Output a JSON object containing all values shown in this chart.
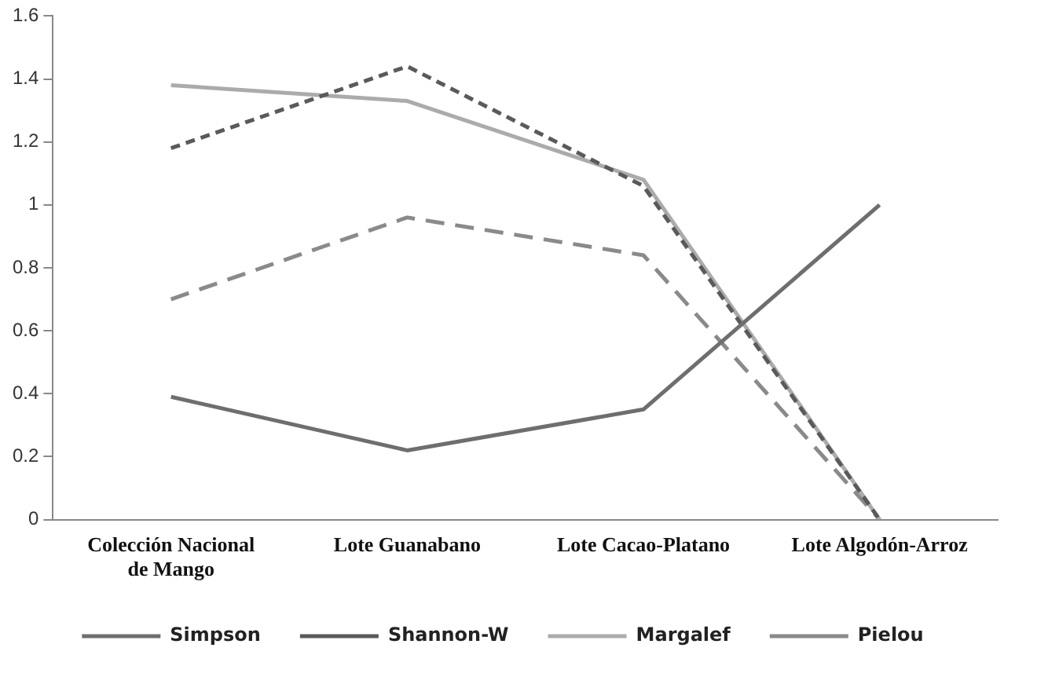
{
  "chart_data": {
    "type": "line",
    "categories": [
      "Colección Nacional de Mango",
      "Lote Guanabano",
      "Lote Cacao-Platano",
      "Lote Algodón-Arroz"
    ],
    "series": [
      {
        "name": "Simpson",
        "color": "#6e6e6e",
        "line_style": "solid",
        "values": [
          0.39,
          0.22,
          0.35,
          1.0
        ]
      },
      {
        "name": "Shannon-W",
        "color": "#5a5a5a",
        "line_style": "dotted",
        "values": [
          1.18,
          1.44,
          1.06,
          0
        ]
      },
      {
        "name": "Margalef",
        "color": "#ababab",
        "line_style": "solid",
        "values": [
          1.38,
          1.33,
          1.08,
          0
        ]
      },
      {
        "name": "Pielou",
        "color": "#8a8a8a",
        "line_style": "dashed",
        "values": [
          0.7,
          0.96,
          0.84,
          0
        ]
      }
    ],
    "ylim": [
      0,
      1.6
    ],
    "yticks": [
      0,
      0.2,
      0.4,
      0.6,
      0.8,
      1,
      1.2,
      1.4,
      1.6
    ],
    "grid": false,
    "legend": "bottom",
    "marker": "none"
  }
}
